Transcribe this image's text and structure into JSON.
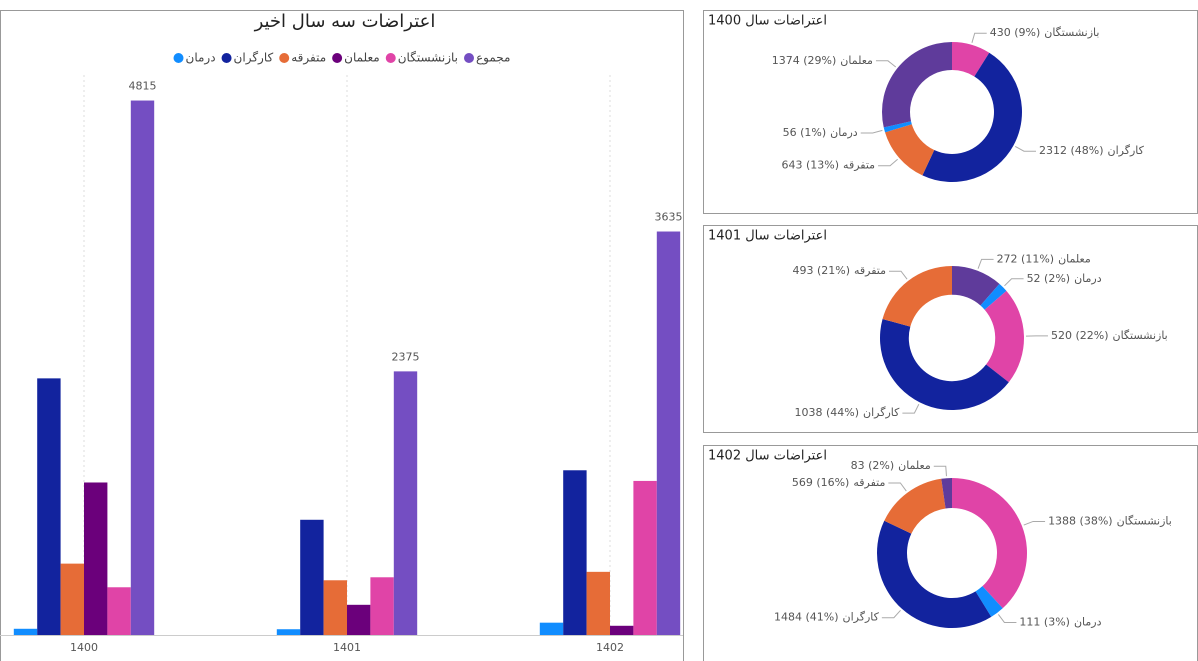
{
  "chart_data": [
    {
      "type": "bar",
      "title": "اعتراضات سه سال اخیر",
      "categories": [
        "1400",
        "1401",
        "1402"
      ],
      "ylim": [
        0,
        5000
      ],
      "series": [
        {
          "name": "درمان",
          "color": "#118DFF",
          "values": [
            56,
            52,
            111
          ]
        },
        {
          "name": "کارگران",
          "color": "#12239E",
          "values": [
            2312,
            1038,
            1484
          ]
        },
        {
          "name": "متفرقه",
          "color": "#E66C37",
          "values": [
            643,
            493,
            569
          ]
        },
        {
          "name": "معلمان",
          "color": "#6B007B",
          "values": [
            1374,
            272,
            83
          ]
        },
        {
          "name": "بازنشستگان",
          "color": "#E044A7",
          "values": [
            430,
            520,
            1388
          ]
        },
        {
          "name": "مجموع",
          "color": "#744EC2",
          "values": [
            4815,
            2375,
            3635
          ],
          "data_labels": true
        }
      ]
    },
    {
      "type": "donut",
      "title": "اعتراضات سال 1400",
      "categories": [
        "بازنشستگان",
        "کارگران",
        "متفرقه",
        "درمان",
        "معلمان"
      ],
      "values": [
        430,
        2312,
        643,
        56,
        1374
      ],
      "value_labels": [
        "430 (9%)",
        "2312 (48%)",
        "643 (13%)",
        "56 (1%)",
        "1374 (29%)"
      ],
      "colors": [
        "#E044A7",
        "#12239E",
        "#E66C37",
        "#118DFF",
        "#5F3B9B"
      ]
    },
    {
      "type": "donut",
      "title": "اعتراضات سال 1401",
      "categories": [
        "معلمان",
        "درمان",
        "بازنشستگان",
        "کارگران",
        "متفرقه"
      ],
      "values": [
        272,
        52,
        520,
        1038,
        493
      ],
      "value_labels": [
        "272 (11%)",
        "52 (2%)",
        "520 (22%)",
        "1038 (44%)",
        "493 (21%)"
      ],
      "colors": [
        "#5F3B9B",
        "#118DFF",
        "#E044A7",
        "#12239E",
        "#E66C37"
      ]
    },
    {
      "type": "donut",
      "title": "اعتراضات سال 1402",
      "categories": [
        "بازنشستگان",
        "درمان",
        "کارگران",
        "متفرقه",
        "معلمان"
      ],
      "values": [
        1388,
        111,
        1484,
        569,
        83
      ],
      "value_labels": [
        "1388 (38%)",
        "111 (3%)",
        "1484 (41%)",
        "569 (16%)",
        "83 (2%)"
      ],
      "colors": [
        "#E044A7",
        "#118DFF",
        "#12239E",
        "#E66C37",
        "#5F3B9B"
      ]
    }
  ]
}
